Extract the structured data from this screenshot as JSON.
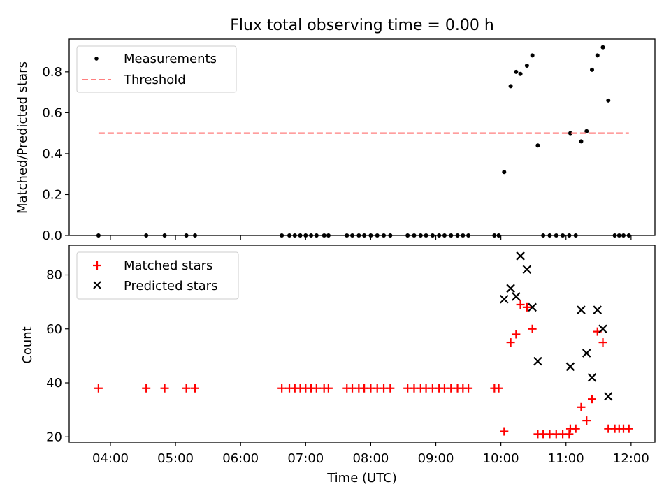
{
  "title": "Flux total observing time = 0.00 h",
  "chart_data": [
    {
      "type": "scatter",
      "title": "Flux total observing time = 0.00 h",
      "xlabel": "",
      "ylabel": "Matched/Predicted stars",
      "xlim": [
        "03:22",
        "12:22"
      ],
      "ylim": [
        0,
        0.96
      ],
      "yticks": [
        0.0,
        0.2,
        0.4,
        0.6,
        0.8
      ],
      "ytick_labels": [
        "0.0",
        "0.2",
        "0.4",
        "0.6",
        "0.8"
      ],
      "xticks": [
        "04:00",
        "05:00",
        "06:00",
        "07:00",
        "08:00",
        "09:00",
        "10:00",
        "11:00",
        "12:00"
      ],
      "grid": false,
      "legend_position": "top-left",
      "series": [
        {
          "name": "Measurements",
          "marker": "dot",
          "color": "#000000",
          "points": [
            [
              "03:49",
              0.0
            ],
            [
              "04:33",
              0.0
            ],
            [
              "04:50",
              0.0
            ],
            [
              "05:10",
              0.0
            ],
            [
              "05:18",
              0.0
            ],
            [
              "06:38",
              0.0
            ],
            [
              "06:45",
              0.0
            ],
            [
              "06:50",
              0.0
            ],
            [
              "06:55",
              0.0
            ],
            [
              "07:00",
              0.0
            ],
            [
              "07:05",
              0.0
            ],
            [
              "07:10",
              0.0
            ],
            [
              "07:17",
              0.0
            ],
            [
              "07:21",
              0.0
            ],
            [
              "07:38",
              0.0
            ],
            [
              "07:43",
              0.0
            ],
            [
              "07:49",
              0.0
            ],
            [
              "07:54",
              0.0
            ],
            [
              "08:00",
              0.0
            ],
            [
              "08:06",
              0.0
            ],
            [
              "08:12",
              0.0
            ],
            [
              "08:18",
              0.0
            ],
            [
              "08:34",
              0.0
            ],
            [
              "08:40",
              0.0
            ],
            [
              "08:46",
              0.0
            ],
            [
              "08:51",
              0.0
            ],
            [
              "08:57",
              0.0
            ],
            [
              "09:03",
              0.0
            ],
            [
              "09:08",
              0.0
            ],
            [
              "09:14",
              0.0
            ],
            [
              "09:20",
              0.0
            ],
            [
              "09:25",
              0.0
            ],
            [
              "09:30",
              0.0
            ],
            [
              "09:54",
              0.0
            ],
            [
              "09:58",
              0.0
            ],
            [
              "10:03",
              0.31
            ],
            [
              "10:09",
              0.73
            ],
            [
              "10:14",
              0.8
            ],
            [
              "10:18",
              0.79
            ],
            [
              "10:24",
              0.83
            ],
            [
              "10:29",
              0.88
            ],
            [
              "10:34",
              0.44
            ],
            [
              "10:39",
              0.0
            ],
            [
              "10:45",
              0.0
            ],
            [
              "10:51",
              0.0
            ],
            [
              "10:57",
              0.0
            ],
            [
              "11:03",
              0.0
            ],
            [
              "11:04",
              0.5
            ],
            [
              "11:09",
              0.0
            ],
            [
              "11:14",
              0.46
            ],
            [
              "11:19",
              0.51
            ],
            [
              "11:24",
              0.81
            ],
            [
              "11:29",
              0.88
            ],
            [
              "11:34",
              0.92
            ],
            [
              "11:39",
              0.66
            ],
            [
              "11:45",
              0.0
            ],
            [
              "11:49",
              0.0
            ],
            [
              "11:53",
              0.0
            ],
            [
              "11:58",
              0.0
            ]
          ]
        },
        {
          "name": "Threshold",
          "type": "line",
          "style": "dashed",
          "color": "#ff7f7f",
          "x": [
            "03:49",
            "11:58"
          ],
          "y": [
            0.5,
            0.5
          ]
        }
      ]
    },
    {
      "type": "scatter",
      "title": "",
      "xlabel": "Time (UTC)",
      "ylabel": "Count",
      "xlim": [
        "03:22",
        "12:22"
      ],
      "ylim": [
        18,
        91
      ],
      "yticks": [
        20,
        40,
        60,
        80
      ],
      "ytick_labels": [
        "20",
        "40",
        "60",
        "80"
      ],
      "xticks": [
        "04:00",
        "05:00",
        "06:00",
        "07:00",
        "08:00",
        "09:00",
        "10:00",
        "11:00",
        "12:00"
      ],
      "grid": false,
      "legend_position": "top-left",
      "series": [
        {
          "name": "Matched stars",
          "marker": "plus",
          "color": "#ff0000",
          "points": [
            [
              "03:49",
              38
            ],
            [
              "04:33",
              38
            ],
            [
              "04:50",
              38
            ],
            [
              "05:10",
              38
            ],
            [
              "05:18",
              38
            ],
            [
              "06:38",
              38
            ],
            [
              "06:45",
              38
            ],
            [
              "06:50",
              38
            ],
            [
              "06:55",
              38
            ],
            [
              "07:00",
              38
            ],
            [
              "07:05",
              38
            ],
            [
              "07:10",
              38
            ],
            [
              "07:17",
              38
            ],
            [
              "07:21",
              38
            ],
            [
              "07:38",
              38
            ],
            [
              "07:43",
              38
            ],
            [
              "07:49",
              38
            ],
            [
              "07:54",
              38
            ],
            [
              "08:00",
              38
            ],
            [
              "08:06",
              38
            ],
            [
              "08:12",
              38
            ],
            [
              "08:18",
              38
            ],
            [
              "08:34",
              38
            ],
            [
              "08:40",
              38
            ],
            [
              "08:46",
              38
            ],
            [
              "08:51",
              38
            ],
            [
              "08:57",
              38
            ],
            [
              "09:03",
              38
            ],
            [
              "09:08",
              38
            ],
            [
              "09:14",
              38
            ],
            [
              "09:20",
              38
            ],
            [
              "09:25",
              38
            ],
            [
              "09:30",
              38
            ],
            [
              "09:54",
              38
            ],
            [
              "09:58",
              38
            ],
            [
              "10:03",
              22
            ],
            [
              "10:09",
              55
            ],
            [
              "10:14",
              58
            ],
            [
              "10:18",
              69
            ],
            [
              "10:24",
              68
            ],
            [
              "10:29",
              60
            ],
            [
              "10:34",
              21
            ],
            [
              "10:39",
              21
            ],
            [
              "10:45",
              21
            ],
            [
              "10:51",
              21
            ],
            [
              "10:57",
              21
            ],
            [
              "11:03",
              21
            ],
            [
              "11:04",
              23
            ],
            [
              "11:09",
              23
            ],
            [
              "11:14",
              31
            ],
            [
              "11:19",
              26
            ],
            [
              "11:24",
              34
            ],
            [
              "11:29",
              59
            ],
            [
              "11:34",
              55
            ],
            [
              "11:39",
              23
            ],
            [
              "11:45",
              23
            ],
            [
              "11:49",
              23
            ],
            [
              "11:53",
              23
            ],
            [
              "11:58",
              23
            ]
          ]
        },
        {
          "name": "Predicted stars",
          "marker": "x",
          "color": "#000000",
          "points": [
            [
              "10:03",
              71
            ],
            [
              "10:09",
              75
            ],
            [
              "10:14",
              72
            ],
            [
              "10:18",
              87
            ],
            [
              "10:24",
              82
            ],
            [
              "10:29",
              68
            ],
            [
              "10:34",
              48
            ],
            [
              "11:04",
              46
            ],
            [
              "11:14",
              67
            ],
            [
              "11:19",
              51
            ],
            [
              "11:24",
              42
            ],
            [
              "11:29",
              67
            ],
            [
              "11:34",
              60
            ],
            [
              "11:39",
              35
            ]
          ]
        }
      ]
    }
  ]
}
